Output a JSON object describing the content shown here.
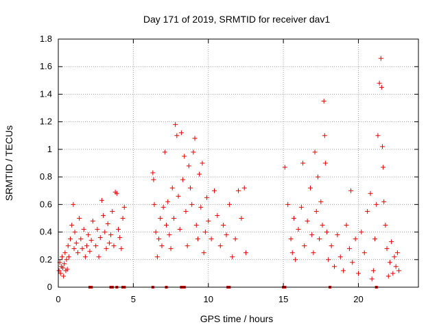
{
  "chart_data": {
    "type": "scatter",
    "title": "Day 171 of 2019, SRMTID for receiver dav1",
    "xlabel": "GPS time / hours",
    "ylabel": "SRMTID / TECUs",
    "xlim": [
      0,
      24
    ],
    "ylim": [
      0,
      1.8
    ],
    "xticks": [
      0,
      5,
      10,
      15,
      20
    ],
    "yticks": [
      0,
      0.2,
      0.4,
      0.6,
      0.8,
      1,
      1.2,
      1.4,
      1.6,
      1.8
    ],
    "xtick_labels": [
      "0",
      "5",
      "10",
      "15",
      "20"
    ],
    "ytick_labels": [
      "0",
      "0.2",
      "0.4",
      "0.6",
      "0.8",
      "1",
      "1.2",
      "1.4",
      "1.6",
      "1.8"
    ],
    "grid": true,
    "marker": "plus",
    "color": "#e00000",
    "series": [
      {
        "name": "SRMTID",
        "points": [
          [
            0.05,
            0.12
          ],
          [
            0.1,
            0.18
          ],
          [
            0.15,
            0.1
          ],
          [
            0.2,
            0.15
          ],
          [
            0.25,
            0.22
          ],
          [
            0.3,
            0.14
          ],
          [
            0.35,
            0.08
          ],
          [
            0.4,
            0.17
          ],
          [
            0.45,
            0.25
          ],
          [
            0.5,
            0.12
          ],
          [
            0.55,
            0.2
          ],
          [
            0.6,
            0.13
          ],
          [
            0.65,
            0.3
          ],
          [
            0.7,
            0.22
          ],
          [
            0.8,
            0.35
          ],
          [
            0.9,
            0.45
          ],
          [
            1.0,
            0.6
          ],
          [
            1.05,
            0.28
          ],
          [
            1.1,
            0.4
          ],
          [
            1.2,
            0.32
          ],
          [
            1.3,
            0.25
          ],
          [
            1.4,
            0.5
          ],
          [
            1.5,
            0.35
          ],
          [
            1.6,
            0.28
          ],
          [
            1.7,
            0.42
          ],
          [
            1.8,
            0.22
          ],
          [
            1.9,
            0.3
          ],
          [
            2.0,
            0.38
          ],
          [
            2.1,
            0.26
          ],
          [
            2.2,
            0.34
          ],
          [
            2.3,
            0.48
          ],
          [
            2.5,
            0.3
          ],
          [
            2.6,
            0.42
          ],
          [
            2.7,
            0.22
          ],
          [
            2.8,
            0.36
          ],
          [
            2.9,
            0.63
          ],
          [
            3.0,
            0.52
          ],
          [
            3.1,
            0.4
          ],
          [
            3.2,
            0.28
          ],
          [
            3.3,
            0.46
          ],
          [
            3.4,
            0.32
          ],
          [
            3.5,
            0.38
          ],
          [
            3.6,
            0.55
          ],
          [
            3.7,
            0.3
          ],
          [
            3.8,
            0.69
          ],
          [
            3.9,
            0.68
          ],
          [
            4.0,
            0.42
          ],
          [
            4.1,
            0.36
          ],
          [
            4.2,
            0.28
          ],
          [
            4.3,
            0.5
          ],
          [
            4.4,
            0.58
          ],
          [
            6.3,
            0.83
          ],
          [
            6.35,
            0.78
          ],
          [
            6.4,
            0.6
          ],
          [
            6.5,
            0.4
          ],
          [
            6.6,
            0.22
          ],
          [
            6.7,
            0.35
          ],
          [
            6.8,
            0.5
          ],
          [
            6.9,
            0.3
          ],
          [
            7.0,
            0.58
          ],
          [
            7.1,
            0.98
          ],
          [
            7.2,
            0.45
          ],
          [
            7.3,
            0.62
          ],
          [
            7.4,
            0.38
          ],
          [
            7.5,
            0.28
          ],
          [
            7.6,
            0.72
          ],
          [
            7.7,
            0.5
          ],
          [
            7.8,
            1.18
          ],
          [
            7.9,
            1.1
          ],
          [
            8.0,
            0.66
          ],
          [
            8.1,
            0.42
          ],
          [
            8.2,
            1.12
          ],
          [
            8.3,
            0.78
          ],
          [
            8.4,
            0.95
          ],
          [
            8.5,
            0.55
          ],
          [
            8.6,
            0.3
          ],
          [
            8.7,
            0.88
          ],
          [
            8.8,
            0.72
          ],
          [
            8.9,
            0.6
          ],
          [
            9.0,
            0.98
          ],
          [
            9.1,
            1.08
          ],
          [
            9.2,
            0.45
          ],
          [
            9.3,
            0.35
          ],
          [
            9.4,
            0.82
          ],
          [
            9.5,
            0.58
          ],
          [
            9.6,
            0.9
          ],
          [
            9.7,
            0.25
          ],
          [
            9.8,
            0.4
          ],
          [
            9.9,
            0.65
          ],
          [
            10.0,
            0.48
          ],
          [
            10.2,
            0.35
          ],
          [
            10.4,
            0.7
          ],
          [
            10.6,
            0.52
          ],
          [
            10.8,
            0.3
          ],
          [
            11.0,
            0.45
          ],
          [
            11.2,
            0.38
          ],
          [
            11.4,
            0.6
          ],
          [
            11.6,
            0.22
          ],
          [
            11.8,
            0.35
          ],
          [
            12.0,
            0.7
          ],
          [
            12.2,
            0.5
          ],
          [
            12.4,
            0.72
          ],
          [
            12.5,
            0.25
          ],
          [
            15.1,
            0.87
          ],
          [
            15.3,
            0.6
          ],
          [
            15.5,
            0.35
          ],
          [
            15.6,
            0.25
          ],
          [
            15.7,
            0.5
          ],
          [
            15.8,
            0.2
          ],
          [
            16.0,
            0.42
          ],
          [
            16.2,
            0.58
          ],
          [
            16.3,
            0.9
          ],
          [
            16.4,
            0.3
          ],
          [
            16.6,
            0.48
          ],
          [
            16.8,
            0.72
          ],
          [
            16.9,
            0.38
          ],
          [
            17.0,
            0.25
          ],
          [
            17.1,
            0.98
          ],
          [
            17.2,
            0.55
          ],
          [
            17.3,
            0.8
          ],
          [
            17.4,
            0.35
          ],
          [
            17.5,
            0.62
          ],
          [
            17.6,
            0.45
          ],
          [
            17.7,
            1.35
          ],
          [
            17.75,
            1.1
          ],
          [
            17.8,
            0.9
          ],
          [
            17.9,
            0.4
          ],
          [
            18.0,
            0.2
          ],
          [
            18.2,
            0.3
          ],
          [
            18.4,
            0.15
          ],
          [
            18.6,
            0.38
          ],
          [
            18.8,
            0.22
          ],
          [
            19.0,
            0.12
          ],
          [
            19.2,
            0.45
          ],
          [
            19.4,
            0.28
          ],
          [
            19.5,
            0.7
          ],
          [
            19.6,
            0.18
          ],
          [
            19.8,
            0.35
          ],
          [
            20.0,
            0.1
          ],
          [
            20.2,
            0.4
          ],
          [
            20.4,
            0.25
          ],
          [
            20.6,
            0.55
          ],
          [
            20.8,
            0.68
          ],
          [
            20.9,
            0.06
          ],
          [
            21.0,
            0.12
          ],
          [
            21.1,
            0.35
          ],
          [
            21.2,
            0.6
          ],
          [
            21.3,
            1.1
          ],
          [
            21.4,
            1.48
          ],
          [
            21.5,
            1.66
          ],
          [
            21.55,
            1.45
          ],
          [
            21.6,
            1.02
          ],
          [
            21.65,
            0.87
          ],
          [
            21.7,
            0.62
          ],
          [
            21.8,
            0.45
          ],
          [
            21.9,
            0.28
          ],
          [
            22.0,
            0.08
          ],
          [
            22.1,
            0.18
          ],
          [
            22.2,
            0.33
          ],
          [
            22.3,
            0.1
          ],
          [
            22.4,
            0.22
          ],
          [
            22.5,
            0.15
          ],
          [
            22.6,
            0.25
          ],
          [
            22.7,
            0.12
          ]
        ]
      }
    ],
    "zero_markers": [
      2.1,
      2.2,
      3.5,
      3.6,
      3.9,
      4.3,
      4.4,
      6.3,
      7.2,
      8.2,
      8.3,
      8.4,
      11.3,
      11.4,
      15.0,
      15.1,
      18.1,
      21.2
    ]
  }
}
